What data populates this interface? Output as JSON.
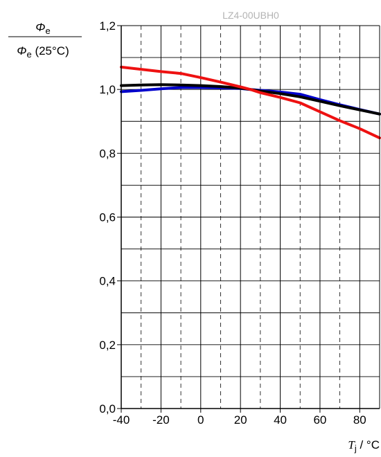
{
  "chart_data": {
    "type": "line",
    "watermark": "LZ4-00UBH0",
    "ylabel_numerator": "Φ",
    "ylabel_numerator_sub": "e",
    "ylabel_denominator_sym": "Φ",
    "ylabel_denominator_sub": "e",
    "ylabel_denominator_rest": " (25°C)",
    "xlabel_sym": "T",
    "xlabel_sub": "j",
    "xlabel_rest": " / °C",
    "xlim": [
      -40,
      90
    ],
    "ylim": [
      0.0,
      1.2
    ],
    "x_ticks": [
      -40,
      -20,
      0,
      20,
      40,
      60,
      80
    ],
    "x_tick_labels": [
      "-40",
      "-20",
      "0",
      "20",
      "40",
      "60",
      "80"
    ],
    "y_ticks": [
      0.0,
      0.2,
      0.4,
      0.6,
      0.8,
      1.0,
      1.2
    ],
    "y_tick_labels": [
      "0,0",
      "0,2",
      "0,4",
      "0,6",
      "0,8",
      "1,0",
      "1,2"
    ],
    "grid": true,
    "series": [
      {
        "color": "#0000cc",
        "x": [
          -40,
          -30,
          -20,
          -10,
          0,
          10,
          20,
          25,
          30,
          40,
          50,
          60,
          70,
          80,
          90
        ],
        "y": [
          0.993,
          0.997,
          1.002,
          1.006,
          1.006,
          1.005,
          1.003,
          1.0,
          0.997,
          0.992,
          0.985,
          0.968,
          0.952,
          0.937,
          0.923
        ]
      },
      {
        "color": "#000000",
        "x": [
          -40,
          -30,
          -20,
          -10,
          0,
          10,
          20,
          25,
          30,
          40,
          50,
          60,
          70,
          80,
          90
        ],
        "y": [
          1.012,
          1.014,
          1.015,
          1.014,
          1.012,
          1.009,
          1.004,
          1.0,
          0.995,
          0.987,
          0.977,
          0.963,
          0.949,
          0.936,
          0.923
        ]
      },
      {
        "color": "#ee1111",
        "x": [
          -40,
          -30,
          -20,
          -10,
          0,
          10,
          20,
          25,
          30,
          40,
          50,
          60,
          70,
          80,
          90
        ],
        "y": [
          1.07,
          1.063,
          1.056,
          1.05,
          1.037,
          1.023,
          1.008,
          1.0,
          0.99,
          0.975,
          0.958,
          0.93,
          0.902,
          0.877,
          0.848
        ]
      }
    ]
  }
}
